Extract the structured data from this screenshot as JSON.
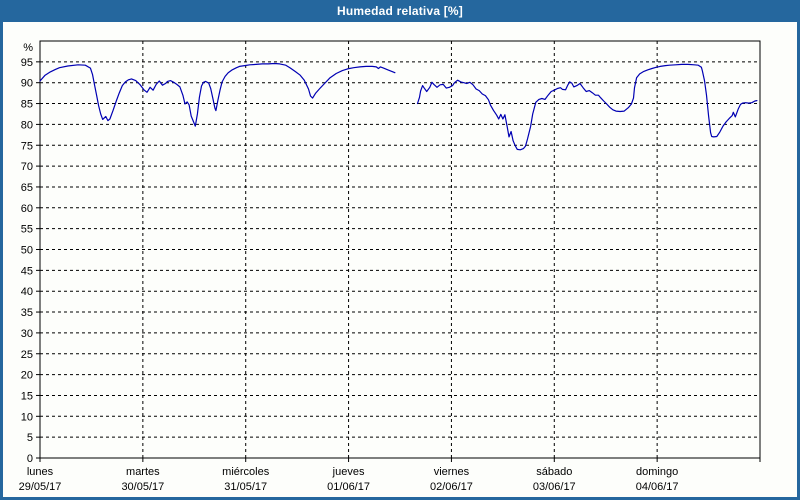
{
  "window": {
    "title": "Humedad relativa [%]"
  },
  "colors": {
    "titlebar_bg": "#25679e",
    "titlebar_text": "#ffffff",
    "window_border": "#25679e",
    "content_bg": "#fdfefb",
    "plot_border": "#000000",
    "gridline": "#000000",
    "line": "#0000b3",
    "label_text": "#000000"
  },
  "chart_data": {
    "type": "line",
    "title": "Humedad relativa [%]",
    "ylabel": "%",
    "xlabel": "",
    "ylim": [
      0,
      100
    ],
    "y_tick_step": 5,
    "y_tick_labels": [
      0,
      5,
      10,
      15,
      20,
      25,
      30,
      35,
      40,
      45,
      50,
      55,
      60,
      65,
      70,
      75,
      80,
      85,
      90,
      95
    ],
    "grid": "dashed-black",
    "legend_position": "none",
    "x_axis": {
      "range_days": [
        0,
        7
      ],
      "days": [
        {
          "name": "lunes",
          "date": "29/05/17"
        },
        {
          "name": "martes",
          "date": "30/05/17"
        },
        {
          "name": "miércoles",
          "date": "31/05/17"
        },
        {
          "name": "jueves",
          "date": "01/06/17"
        },
        {
          "name": "viernes",
          "date": "02/06/17"
        },
        {
          "name": "sábado",
          "date": "03/06/17"
        },
        {
          "name": "domingo",
          "date": "04/06/17"
        }
      ]
    },
    "series": [
      {
        "name": "Humedad relativa",
        "color": "#0000b3",
        "unit": "%",
        "segments": [
          [
            [
              0.0,
              90.4
            ],
            [
              0.05,
              91.8
            ],
            [
              0.1,
              92.6
            ],
            [
              0.15,
              93.2
            ],
            [
              0.19,
              93.6
            ],
            [
              0.27,
              94.0
            ],
            [
              0.37,
              94.3
            ],
            [
              0.44,
              94.2
            ],
            [
              0.49,
              93.5
            ],
            [
              0.51,
              92.0
            ],
            [
              0.53,
              89.5
            ],
            [
              0.55,
              87.0
            ],
            [
              0.57,
              84.5
            ],
            [
              0.59,
              82.5
            ],
            [
              0.61,
              81.2
            ],
            [
              0.64,
              81.9
            ],
            [
              0.66,
              80.9
            ],
            [
              0.68,
              81.3
            ],
            [
              0.71,
              83.3
            ],
            [
              0.74,
              85.5
            ],
            [
              0.77,
              87.5
            ],
            [
              0.8,
              89.3
            ],
            [
              0.83,
              90.2
            ],
            [
              0.86,
              90.7
            ],
            [
              0.89,
              90.9
            ],
            [
              0.93,
              90.5
            ],
            [
              0.97,
              89.6
            ],
            [
              1.01,
              88.3
            ],
            [
              1.04,
              87.7
            ],
            [
              1.07,
              88.9
            ],
            [
              1.1,
              88.2
            ],
            [
              1.13,
              89.6
            ],
            [
              1.16,
              90.4
            ],
            [
              1.19,
              89.4
            ],
            [
              1.22,
              89.8
            ],
            [
              1.24,
              90.3
            ],
            [
              1.27,
              90.5
            ],
            [
              1.3,
              90.1
            ],
            [
              1.33,
              89.6
            ],
            [
              1.36,
              89.0
            ],
            [
              1.39,
              86.9
            ],
            [
              1.41,
              84.9
            ],
            [
              1.43,
              85.4
            ],
            [
              1.45,
              84.7
            ],
            [
              1.47,
              82.0
            ],
            [
              1.51,
              79.6
            ],
            [
              1.53,
              82.5
            ],
            [
              1.55,
              86.5
            ],
            [
              1.57,
              89.2
            ],
            [
              1.59,
              90.1
            ],
            [
              1.61,
              90.3
            ],
            [
              1.64,
              89.9
            ],
            [
              1.66,
              88.6
            ],
            [
              1.68,
              86.3
            ],
            [
              1.7,
              83.9
            ],
            [
              1.71,
              83.3
            ],
            [
              1.73,
              85.8
            ],
            [
              1.75,
              88.2
            ],
            [
              1.77,
              90.2
            ],
            [
              1.8,
              91.5
            ],
            [
              1.83,
              92.4
            ],
            [
              1.87,
              93.1
            ],
            [
              1.91,
              93.6
            ],
            [
              1.94,
              93.9
            ],
            [
              1.99,
              94.1
            ],
            [
              2.04,
              94.3
            ],
            [
              2.1,
              94.4
            ],
            [
              2.16,
              94.5
            ],
            [
              2.22,
              94.5
            ],
            [
              2.28,
              94.6
            ],
            [
              2.33,
              94.5
            ],
            [
              2.39,
              94.2
            ],
            [
              2.43,
              93.6
            ],
            [
              2.48,
              92.7
            ],
            [
              2.53,
              91.8
            ],
            [
              2.57,
              90.6
            ],
            [
              2.61,
              88.5
            ],
            [
              2.63,
              86.8
            ],
            [
              2.65,
              86.3
            ],
            [
              2.68,
              87.5
            ],
            [
              2.72,
              88.6
            ],
            [
              2.77,
              89.9
            ],
            [
              2.82,
              91.2
            ],
            [
              2.88,
              92.2
            ],
            [
              2.94,
              92.9
            ],
            [
              2.99,
              93.3
            ],
            [
              3.05,
              93.6
            ],
            [
              3.11,
              93.8
            ],
            [
              3.17,
              93.9
            ],
            [
              3.23,
              93.9
            ],
            [
              3.27,
              93.8
            ],
            [
              3.29,
              93.4
            ],
            [
              3.31,
              93.8
            ],
            [
              3.34,
              93.5
            ],
            [
              3.38,
              93.1
            ],
            [
              3.42,
              92.7
            ],
            [
              3.45,
              92.4
            ]
          ],
          [
            [
              3.67,
              85.0
            ],
            [
              3.69,
              86.5
            ],
            [
              3.7,
              88.0
            ],
            [
              3.72,
              89.3
            ],
            [
              3.73,
              88.9
            ],
            [
              3.76,
              87.9
            ],
            [
              3.79,
              88.9
            ],
            [
              3.81,
              90.1
            ],
            [
              3.83,
              89.6
            ],
            [
              3.86,
              88.9
            ],
            [
              3.89,
              89.5
            ],
            [
              3.92,
              89.6
            ],
            [
              3.95,
              88.7
            ],
            [
              3.98,
              88.9
            ],
            [
              4.01,
              89.3
            ],
            [
              4.03,
              90.0
            ],
            [
              4.06,
              90.6
            ],
            [
              4.09,
              90.2
            ],
            [
              4.12,
              90.0
            ],
            [
              4.15,
              89.8
            ],
            [
              4.18,
              90.1
            ],
            [
              4.21,
              89.5
            ],
            [
              4.24,
              88.5
            ],
            [
              4.27,
              88.1
            ],
            [
              4.3,
              87.3
            ],
            [
              4.33,
              86.9
            ],
            [
              4.36,
              85.9
            ],
            [
              4.38,
              84.6
            ],
            [
              4.41,
              83.3
            ],
            [
              4.44,
              82.2
            ],
            [
              4.46,
              81.3
            ],
            [
              4.48,
              82.4
            ],
            [
              4.5,
              81.3
            ],
            [
              4.52,
              82.3
            ],
            [
              4.54,
              79.7
            ],
            [
              4.56,
              77.0
            ],
            [
              4.58,
              78.3
            ],
            [
              4.6,
              76.1
            ],
            [
              4.62,
              74.9
            ],
            [
              4.64,
              74.0
            ],
            [
              4.67,
              73.9
            ],
            [
              4.7,
              74.2
            ],
            [
              4.72,
              74.8
            ],
            [
              4.74,
              76.5
            ],
            [
              4.77,
              79.5
            ],
            [
              4.79,
              82.5
            ],
            [
              4.82,
              85.3
            ],
            [
              4.85,
              86.0
            ],
            [
              4.88,
              86.2
            ],
            [
              4.91,
              86.0
            ],
            [
              4.94,
              87.0
            ],
            [
              4.97,
              87.9
            ],
            [
              5.0,
              88.2
            ],
            [
              5.03,
              88.6
            ],
            [
              5.06,
              88.8
            ],
            [
              5.08,
              88.4
            ],
            [
              5.11,
              88.3
            ],
            [
              5.13,
              89.4
            ],
            [
              5.15,
              90.2
            ],
            [
              5.17,
              89.9
            ],
            [
              5.19,
              89.0
            ],
            [
              5.22,
              89.3
            ],
            [
              5.25,
              89.8
            ],
            [
              5.28,
              88.8
            ],
            [
              5.31,
              87.9
            ],
            [
              5.34,
              88.1
            ],
            [
              5.37,
              87.6
            ],
            [
              5.4,
              87.0
            ],
            [
              5.43,
              87.0
            ],
            [
              5.45,
              86.4
            ],
            [
              5.48,
              85.6
            ],
            [
              5.51,
              84.9
            ],
            [
              5.54,
              84.1
            ],
            [
              5.57,
              83.5
            ],
            [
              5.6,
              83.2
            ],
            [
              5.64,
              83.1
            ],
            [
              5.68,
              83.2
            ],
            [
              5.72,
              84.0
            ],
            [
              5.75,
              84.9
            ],
            [
              5.77,
              86.3
            ],
            [
              5.78,
              88.8
            ],
            [
              5.8,
              91.2
            ],
            [
              5.83,
              92.1
            ],
            [
              5.87,
              92.7
            ],
            [
              5.91,
              93.1
            ],
            [
              5.95,
              93.4
            ],
            [
              5.99,
              93.7
            ],
            [
              6.03,
              93.9
            ],
            [
              6.08,
              94.1
            ],
            [
              6.12,
              94.2
            ],
            [
              6.18,
              94.3
            ],
            [
              6.24,
              94.4
            ],
            [
              6.3,
              94.4
            ],
            [
              6.36,
              94.3
            ],
            [
              6.4,
              94.2
            ],
            [
              6.43,
              93.7
            ],
            [
              6.44,
              92.8
            ],
            [
              6.46,
              90.5
            ],
            [
              6.48,
              87.0
            ],
            [
              6.5,
              82.0
            ],
            [
              6.52,
              78.0
            ],
            [
              6.53,
              77.1
            ],
            [
              6.55,
              77.0
            ],
            [
              6.58,
              77.1
            ],
            [
              6.61,
              78.2
            ],
            [
              6.64,
              79.6
            ],
            [
              6.67,
              80.6
            ],
            [
              6.7,
              81.4
            ],
            [
              6.73,
              82.1
            ],
            [
              6.74,
              82.9
            ],
            [
              6.76,
              81.8
            ],
            [
              6.79,
              83.8
            ],
            [
              6.81,
              84.8
            ],
            [
              6.83,
              85.1
            ],
            [
              6.86,
              85.2
            ],
            [
              6.89,
              85.1
            ],
            [
              6.92,
              85.2
            ],
            [
              6.95,
              85.6
            ],
            [
              6.97,
              85.7
            ]
          ]
        ]
      }
    ]
  }
}
